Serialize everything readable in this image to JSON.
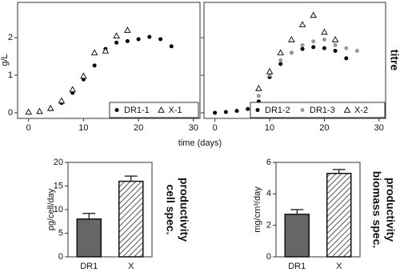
{
  "figure": {
    "xlabel": "time (days)",
    "side_label": "titre"
  },
  "chart_data": [
    {
      "type": "scatter",
      "ylabel": "g/L",
      "xlim": [
        -2,
        31.2
      ],
      "ylim": [
        -0.15,
        2.94
      ],
      "xticks": [
        0,
        10,
        20,
        30
      ],
      "yticks": [
        0,
        1,
        2
      ],
      "series": [
        {
          "name": "DR1-1",
          "marker": "circle",
          "color": "#000000",
          "x": [
            0,
            2,
            4,
            6,
            8,
            10,
            12,
            14,
            16,
            18,
            20,
            22,
            24,
            26
          ],
          "values": [
            0,
            0.02,
            0.1,
            0.26,
            0.53,
            0.89,
            1.26,
            1.7,
            1.87,
            1.91,
            1.96,
            2.02,
            1.96,
            1.77
          ]
        },
        {
          "name": "X-1",
          "marker": "triangle",
          "color": "#000000",
          "x": [
            0,
            2,
            4,
            6,
            8,
            10,
            12,
            14,
            16,
            18
          ],
          "values": [
            0.02,
            0.04,
            0.12,
            0.32,
            0.62,
            0.98,
            1.6,
            1.65,
            2.05,
            2.2
          ]
        }
      ]
    },
    {
      "type": "scatter",
      "xlim": [
        -2,
        31.2
      ],
      "ylim": [
        -0.15,
        2.94
      ],
      "xticks": [
        0,
        10,
        20,
        30
      ],
      "yticks": [
        0,
        1,
        2
      ],
      "series": [
        {
          "name": "DR1-2",
          "marker": "circle",
          "color": "#000000",
          "x": [
            0,
            2,
            4,
            6,
            8,
            10,
            12,
            14,
            16,
            18,
            20,
            22,
            24
          ],
          "values": [
            0,
            0.02,
            0.05,
            0.1,
            0.3,
            0.95,
            1.3,
            1.6,
            1.7,
            1.75,
            1.72,
            1.65,
            1.45
          ]
        },
        {
          "name": "DR1-3",
          "marker": "circle",
          "color": "#999999",
          "x": [
            8,
            10,
            12,
            14,
            16,
            18,
            20,
            22,
            24,
            26
          ],
          "values": [
            0.45,
            1.0,
            1.4,
            1.6,
            1.8,
            1.9,
            1.95,
            1.8,
            1.72,
            1.65
          ]
        },
        {
          "name": "X-2",
          "marker": "triangle",
          "color": "#000000",
          "x": [
            8,
            10,
            12,
            14,
            16,
            18,
            20,
            22
          ],
          "values": [
            0.65,
            1.1,
            1.6,
            1.95,
            2.35,
            2.6,
            2.15,
            1.95
          ]
        }
      ]
    },
    {
      "type": "bar",
      "ylabel": "pg/cell/day",
      "side_label": [
        "cell spec.",
        "productivity"
      ],
      "categories": [
        "DR1",
        "X"
      ],
      "values": [
        8,
        16
      ],
      "errors": [
        1.2,
        1.1
      ],
      "patterns": [
        "solid",
        "hatch"
      ],
      "color": "#666666",
      "ylim": [
        0,
        20
      ],
      "yticks": [
        0,
        5,
        10,
        15,
        20
      ]
    },
    {
      "type": "bar",
      "ylabel": "mg/cm³/day",
      "side_label": [
        "biomass spec.",
        "productivity"
      ],
      "categories": [
        "DR1",
        "X"
      ],
      "values": [
        2.7,
        5.3
      ],
      "errors": [
        0.3,
        0.25
      ],
      "patterns": [
        "solid",
        "hatch"
      ],
      "color": "#666666",
      "ylim": [
        0,
        6
      ],
      "yticks": [
        0,
        2,
        4,
        6
      ]
    }
  ]
}
